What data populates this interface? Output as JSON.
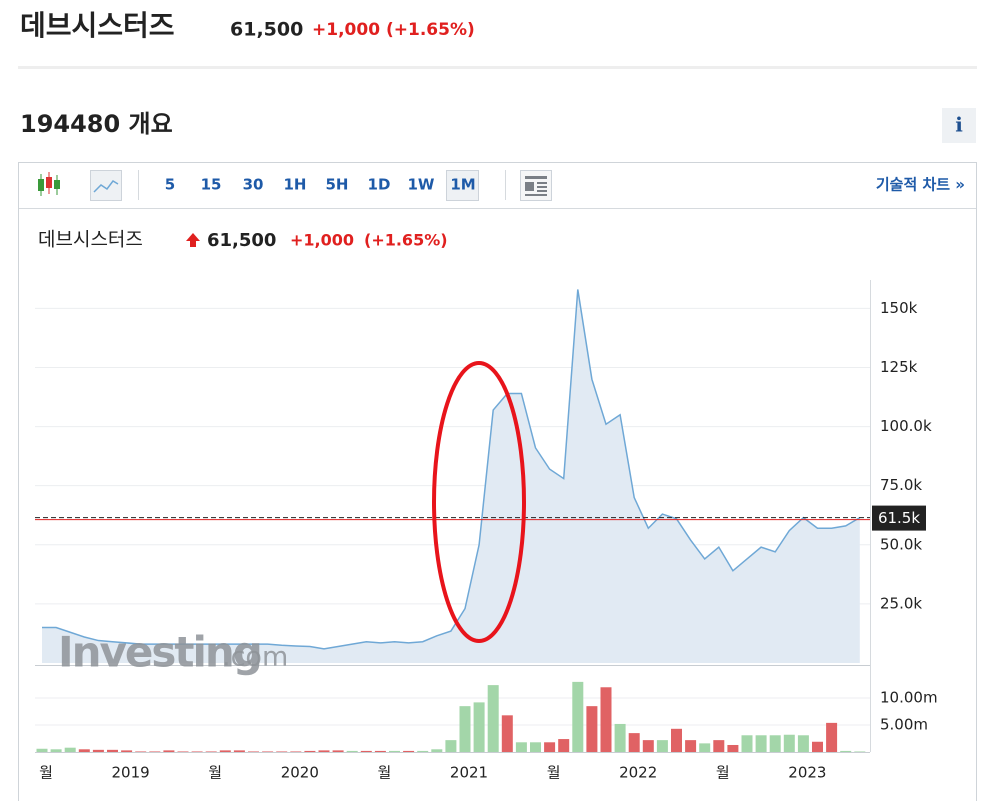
{
  "header": {
    "name": "데브시스터즈",
    "price": "61,500",
    "change": "+1,000",
    "change_pct": "(+1.65%)"
  },
  "overview_title": "194480 개요",
  "info_button": "i",
  "toolbar": {
    "intervals": [
      "5",
      "15",
      "30",
      "1H",
      "5H",
      "1D",
      "1W",
      "1M"
    ],
    "selected": 7,
    "technical_link": "기술적 차트 »"
  },
  "watermark": {
    "brand": "Investing",
    "suffix": ".com"
  },
  "chart_data": {
    "type": "line",
    "title": "데브시스터즈",
    "price": "61,500",
    "change": "+1,000",
    "change_pct": "(+1.65%)",
    "categories": [
      "월",
      null,
      null,
      null,
      null,
      null,
      "2019",
      null,
      null,
      null,
      null,
      null,
      "월",
      null,
      null,
      null,
      null,
      null,
      "2020",
      null,
      null,
      null,
      null,
      null,
      "월",
      null,
      null,
      null,
      null,
      null,
      "2021",
      null,
      null,
      null,
      null,
      null,
      "월",
      null,
      null,
      null,
      null,
      null,
      "2022",
      null,
      null,
      null,
      null,
      null,
      "월",
      null,
      null,
      null,
      null,
      null,
      "2023",
      null,
      null,
      null,
      null
    ],
    "series": [
      {
        "name": "데브시스터즈",
        "color": "#6fa8d6",
        "fill": "#e1eaf3",
        "values": [
          15,
          15,
          13,
          11,
          9.5,
          9,
          8.5,
          8,
          8,
          8,
          8,
          8,
          8,
          8,
          8,
          8,
          8,
          7.5,
          7.2,
          7,
          6,
          7,
          8,
          9,
          8.5,
          9,
          8.5,
          9,
          11.5,
          13.5,
          23,
          50,
          107,
          114,
          114,
          91,
          82,
          78,
          158,
          120,
          101,
          105,
          70,
          57,
          63,
          61,
          52,
          44,
          49,
          39,
          44,
          49,
          47,
          56,
          61.5,
          57,
          57,
          58,
          61.5
        ]
      }
    ],
    "ylim": [
      0,
      162
    ],
    "yticks": [
      {
        "value": 25,
        "label": "25.0k"
      },
      {
        "value": 50,
        "label": "50.0k"
      },
      {
        "value": 75,
        "label": "75.0k"
      },
      {
        "value": 100,
        "label": "100.0k"
      },
      {
        "value": 125,
        "label": "125k"
      },
      {
        "value": 150,
        "label": "150k"
      }
    ],
    "grid": true,
    "last_price": {
      "value": 61.5,
      "label": "61.5k"
    },
    "volume": {
      "values": [
        0.6,
        0.5,
        0.8,
        0.5,
        0.4,
        0.4,
        0.3,
        0.1,
        0.1,
        0.3,
        0.1,
        0.1,
        0.1,
        0.3,
        0.3,
        0.1,
        0.1,
        0.1,
        0.1,
        0.2,
        0.3,
        0.3,
        0.2,
        0.2,
        0.2,
        0.2,
        0.2,
        0.2,
        0.5,
        2.2,
        8.5,
        9.2,
        12.4,
        6.8,
        1.8,
        1.8,
        1.8,
        2.4,
        13,
        8.5,
        12,
        5.2,
        3.5,
        2.2,
        2.2,
        4.3,
        2.2,
        1.6,
        2.2,
        1.3,
        3.1,
        3.1,
        3.1,
        3.2,
        3.1,
        1.9,
        5.4,
        0.2,
        0.1
      ],
      "directions": [
        "up",
        "up",
        "up",
        "down",
        "down",
        "down",
        "down",
        "down",
        "down",
        "down",
        "down",
        "down",
        "down",
        "down",
        "down",
        "down",
        "down",
        "down",
        "down",
        "down",
        "down",
        "down",
        "up",
        "down",
        "down",
        "up",
        "down",
        "up",
        "up",
        "up",
        "up",
        "up",
        "up",
        "down",
        "up",
        "up",
        "down",
        "down",
        "up",
        "down",
        "down",
        "up",
        "down",
        "down",
        "up",
        "down",
        "down",
        "up",
        "down",
        "down",
        "up",
        "up",
        "up",
        "up",
        "up",
        "down",
        "down",
        "up",
        "up"
      ],
      "palette": {
        "up": "#a3d6a9",
        "down": "#e06264"
      },
      "ylim": [
        0,
        16.5
      ],
      "yticks": [
        {
          "value": 5,
          "label": "5.00m"
        },
        {
          "value": 10,
          "label": "10.00m"
        }
      ]
    }
  }
}
